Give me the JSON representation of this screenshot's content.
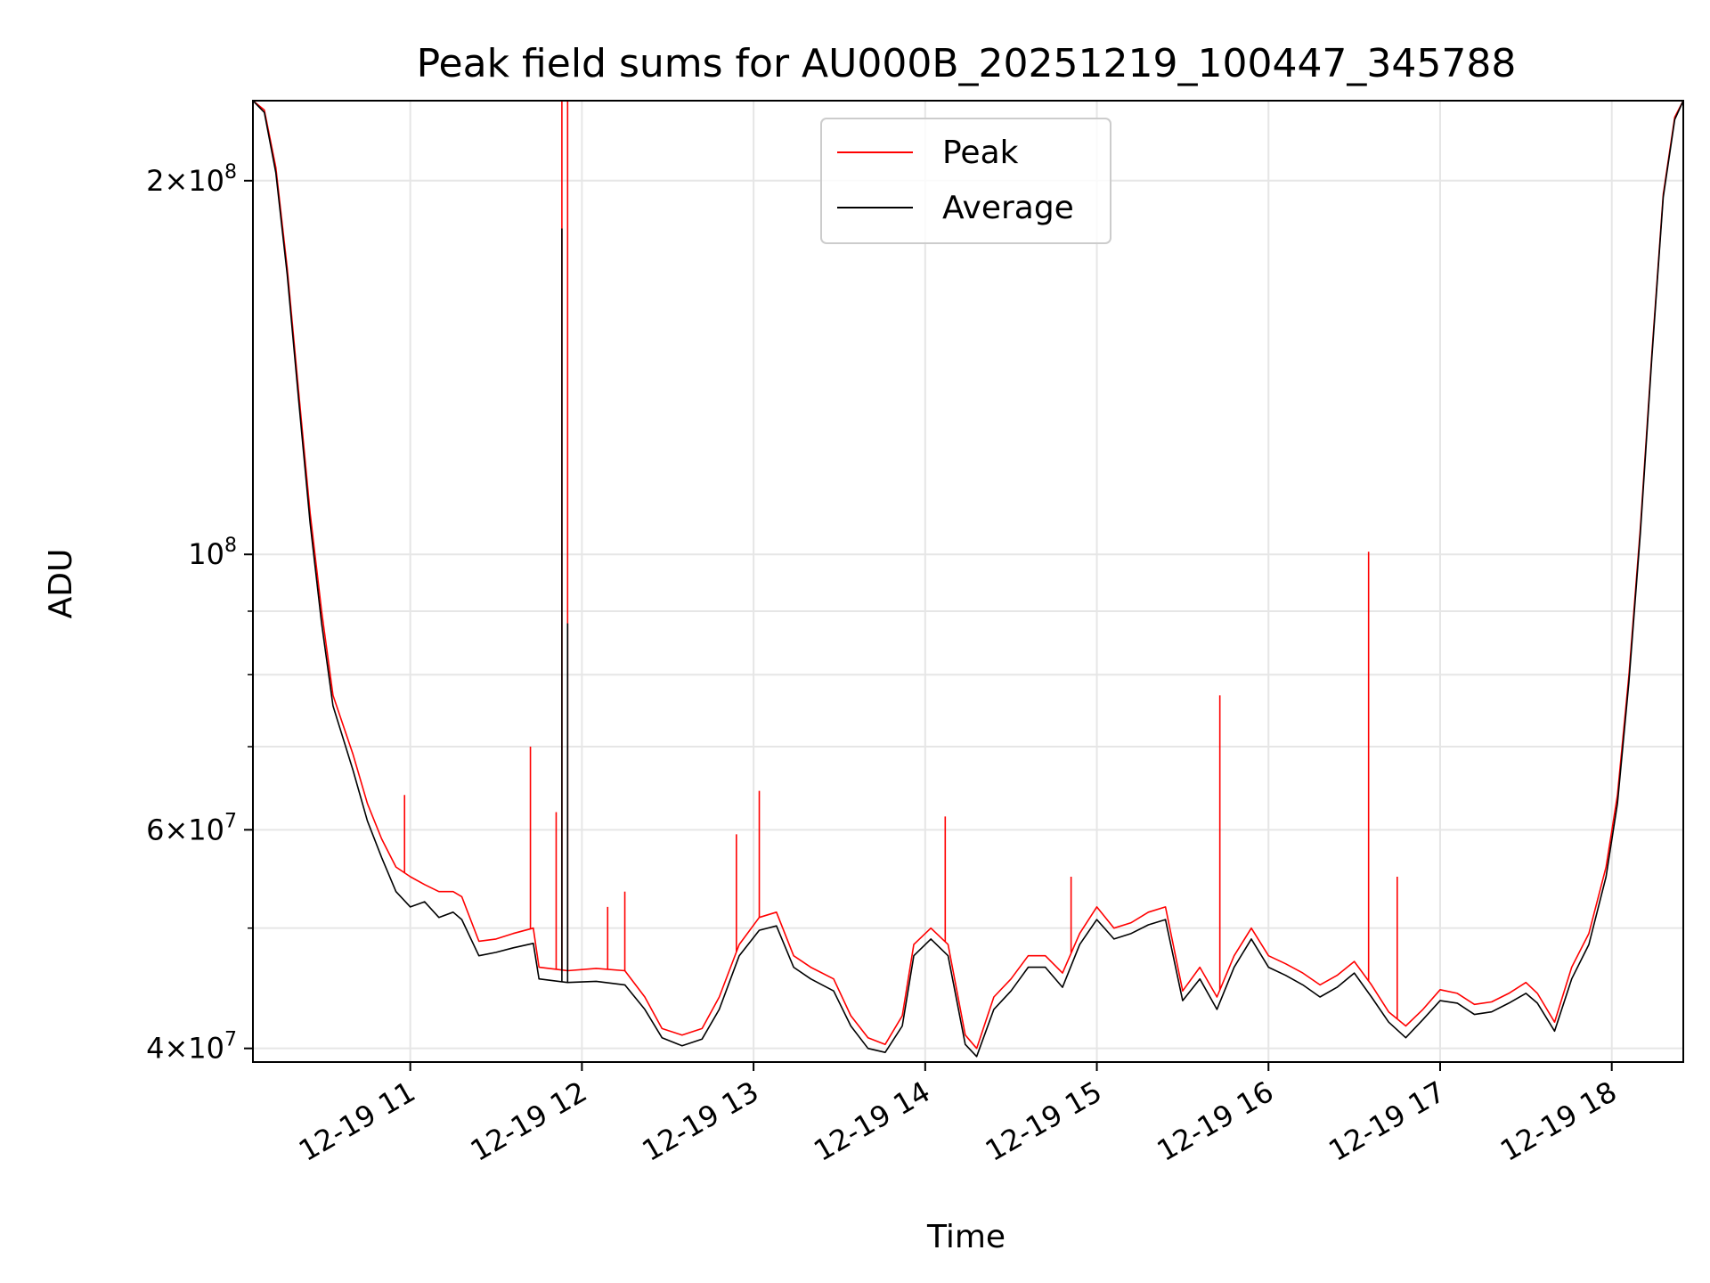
{
  "chart_data": {
    "type": "line",
    "title": "Peak field sums for AU000B_20251219_100447_345788",
    "xlabel": "Time",
    "ylabel": "ADU",
    "y_scale": "log",
    "ylim": [
      39000000,
      232000000
    ],
    "xlim": [
      "2025-12-19T10:05",
      "2025-12-19T18:25"
    ],
    "grid": true,
    "legend_position": "top-center",
    "x_ticks": [
      {
        "t": "2025-12-19T11:00",
        "label": "12-19 11"
      },
      {
        "t": "2025-12-19T12:00",
        "label": "12-19 12"
      },
      {
        "t": "2025-12-19T13:00",
        "label": "12-19 13"
      },
      {
        "t": "2025-12-19T14:00",
        "label": "12-19 14"
      },
      {
        "t": "2025-12-19T15:00",
        "label": "12-19 15"
      },
      {
        "t": "2025-12-19T16:00",
        "label": "12-19 16"
      },
      {
        "t": "2025-12-19T17:00",
        "label": "12-19 17"
      },
      {
        "t": "2025-12-19T18:00",
        "label": "12-19 18"
      }
    ],
    "y_ticks": [
      {
        "value": 40000000,
        "base": "4",
        "exp": "7"
      },
      {
        "value": 60000000,
        "base": "6",
        "exp": "7"
      },
      {
        "value": 100000000,
        "base": "",
        "exp": "8"
      },
      {
        "value": 200000000,
        "base": "2",
        "exp": "8"
      }
    ],
    "y_minor_ticks": [
      50000000,
      70000000,
      80000000,
      90000000
    ],
    "series": [
      {
        "name": "Peak",
        "color": "#ff0000",
        "points": [
          [
            "2025-12-19T10:05",
            232000000
          ],
          [
            "2025-12-19T10:09",
            228000000
          ],
          [
            "2025-12-19T10:13",
            205000000
          ],
          [
            "2025-12-19T10:17",
            170000000
          ],
          [
            "2025-12-19T10:21",
            135000000
          ],
          [
            "2025-12-19T10:25",
            108000000
          ],
          [
            "2025-12-19T10:29",
            90000000
          ],
          [
            "2025-12-19T10:33",
            77000000
          ],
          [
            "2025-12-19T10:40",
            69000000
          ],
          [
            "2025-12-19T10:45",
            63000000
          ],
          [
            "2025-12-19T10:50",
            59000000
          ],
          [
            "2025-12-19T10:55",
            56000000
          ],
          [
            "2025-12-19T11:00",
            55000000
          ],
          [
            "2025-12-19T11:05",
            54200000
          ],
          [
            "2025-12-19T11:10",
            53500000
          ],
          [
            "2025-12-19T11:15",
            53500000
          ],
          [
            "2025-12-19T11:18",
            53000000
          ],
          [
            "2025-12-19T11:24",
            48800000
          ],
          [
            "2025-12-19T11:30",
            49000000
          ],
          [
            "2025-12-19T11:36",
            49500000
          ],
          [
            "2025-12-19T11:43",
            50000000
          ],
          [
            "2025-12-19T11:45",
            46500000
          ],
          [
            "2025-12-19T11:55",
            46200000
          ],
          [
            "2025-12-19T12:05",
            46400000
          ],
          [
            "2025-12-19T12:15",
            46200000
          ],
          [
            "2025-12-19T12:22",
            44000000
          ],
          [
            "2025-12-19T12:28",
            41500000
          ],
          [
            "2025-12-19T12:35",
            41000000
          ],
          [
            "2025-12-19T12:42",
            41500000
          ],
          [
            "2025-12-19T12:48",
            44000000
          ],
          [
            "2025-12-19T12:55",
            48500000
          ],
          [
            "2025-12-19T13:02",
            51000000
          ],
          [
            "2025-12-19T13:08",
            51500000
          ],
          [
            "2025-12-19T13:14",
            47500000
          ],
          [
            "2025-12-19T13:20",
            46500000
          ],
          [
            "2025-12-19T13:28",
            45500000
          ],
          [
            "2025-12-19T13:34",
            42500000
          ],
          [
            "2025-12-19T13:40",
            40800000
          ],
          [
            "2025-12-19T13:46",
            40300000
          ],
          [
            "2025-12-19T13:52",
            42500000
          ],
          [
            "2025-12-19T13:56",
            48500000
          ],
          [
            "2025-12-19T14:02",
            50000000
          ],
          [
            "2025-12-19T14:08",
            48500000
          ],
          [
            "2025-12-19T14:14",
            41000000
          ],
          [
            "2025-12-19T14:18",
            40000000
          ],
          [
            "2025-12-19T14:24",
            44000000
          ],
          [
            "2025-12-19T14:30",
            45500000
          ],
          [
            "2025-12-19T14:36",
            47500000
          ],
          [
            "2025-12-19T14:42",
            47500000
          ],
          [
            "2025-12-19T14:48",
            46000000
          ],
          [
            "2025-12-19T14:54",
            49500000
          ],
          [
            "2025-12-19T15:00",
            52000000
          ],
          [
            "2025-12-19T15:06",
            50000000
          ],
          [
            "2025-12-19T15:12",
            50500000
          ],
          [
            "2025-12-19T15:18",
            51500000
          ],
          [
            "2025-12-19T15:24",
            52000000
          ],
          [
            "2025-12-19T15:30",
            44500000
          ],
          [
            "2025-12-19T15:36",
            46500000
          ],
          [
            "2025-12-19T15:42",
            44000000
          ],
          [
            "2025-12-19T15:48",
            47500000
          ],
          [
            "2025-12-19T15:54",
            50000000
          ],
          [
            "2025-12-19T16:00",
            47500000
          ],
          [
            "2025-12-19T16:06",
            46800000
          ],
          [
            "2025-12-19T16:12",
            46000000
          ],
          [
            "2025-12-19T16:18",
            45000000
          ],
          [
            "2025-12-19T16:24",
            45800000
          ],
          [
            "2025-12-19T16:30",
            47000000
          ],
          [
            "2025-12-19T16:36",
            45000000
          ],
          [
            "2025-12-19T16:42",
            42800000
          ],
          [
            "2025-12-19T16:48",
            41700000
          ],
          [
            "2025-12-19T16:54",
            43000000
          ],
          [
            "2025-12-19T17:00",
            44600000
          ],
          [
            "2025-12-19T17:06",
            44300000
          ],
          [
            "2025-12-19T17:12",
            43400000
          ],
          [
            "2025-12-19T17:18",
            43600000
          ],
          [
            "2025-12-19T17:24",
            44300000
          ],
          [
            "2025-12-19T17:30",
            45200000
          ],
          [
            "2025-12-19T17:34",
            44300000
          ],
          [
            "2025-12-19T17:40",
            42000000
          ],
          [
            "2025-12-19T17:46",
            46500000
          ],
          [
            "2025-12-19T17:52",
            49500000
          ],
          [
            "2025-12-19T17:58",
            56000000
          ],
          [
            "2025-12-19T18:02",
            64000000
          ],
          [
            "2025-12-19T18:06",
            80000000
          ],
          [
            "2025-12-19T18:10",
            105000000
          ],
          [
            "2025-12-19T18:14",
            145000000
          ],
          [
            "2025-12-19T18:18",
            195000000
          ],
          [
            "2025-12-19T18:22",
            225000000
          ],
          [
            "2025-12-19T18:25",
            232000000
          ]
        ],
        "spikes": [
          [
            "2025-12-19T10:58",
            64000000
          ],
          [
            "2025-12-19T11:42",
            70000000
          ],
          [
            "2025-12-19T11:51",
            62000000
          ],
          [
            "2025-12-19T11:53",
            232000000
          ],
          [
            "2025-12-19T11:55",
            232000000
          ],
          [
            "2025-12-19T12:09",
            52000000
          ],
          [
            "2025-12-19T12:15",
            53500000
          ],
          [
            "2025-12-19T12:54",
            59500000
          ],
          [
            "2025-12-19T13:02",
            64500000
          ],
          [
            "2025-12-19T14:07",
            61500000
          ],
          [
            "2025-12-19T14:51",
            55000000
          ],
          [
            "2025-12-19T15:43",
            77000000
          ],
          [
            "2025-12-19T16:35",
            100500000
          ],
          [
            "2025-12-19T16:45",
            55000000
          ]
        ]
      },
      {
        "name": "Average",
        "color": "#000000",
        "points": [
          [
            "2025-12-19T10:05",
            232000000
          ],
          [
            "2025-12-19T10:09",
            227000000
          ],
          [
            "2025-12-19T10:13",
            203000000
          ],
          [
            "2025-12-19T10:17",
            168000000
          ],
          [
            "2025-12-19T10:21",
            133000000
          ],
          [
            "2025-12-19T10:25",
            106000000
          ],
          [
            "2025-12-19T10:29",
            88000000
          ],
          [
            "2025-12-19T10:33",
            75500000
          ],
          [
            "2025-12-19T10:40",
            67000000
          ],
          [
            "2025-12-19T10:45",
            61000000
          ],
          [
            "2025-12-19T10:50",
            57000000
          ],
          [
            "2025-12-19T10:55",
            53500000
          ],
          [
            "2025-12-19T11:00",
            52000000
          ],
          [
            "2025-12-19T11:05",
            52500000
          ],
          [
            "2025-12-19T11:10",
            51000000
          ],
          [
            "2025-12-19T11:15",
            51500000
          ],
          [
            "2025-12-19T11:18",
            50800000
          ],
          [
            "2025-12-19T11:24",
            47500000
          ],
          [
            "2025-12-19T11:30",
            47800000
          ],
          [
            "2025-12-19T11:36",
            48200000
          ],
          [
            "2025-12-19T11:43",
            48600000
          ],
          [
            "2025-12-19T11:45",
            45500000
          ],
          [
            "2025-12-19T11:55",
            45200000
          ],
          [
            "2025-12-19T12:05",
            45300000
          ],
          [
            "2025-12-19T12:15",
            45000000
          ],
          [
            "2025-12-19T12:22",
            43000000
          ],
          [
            "2025-12-19T12:28",
            40800000
          ],
          [
            "2025-12-19T12:35",
            40200000
          ],
          [
            "2025-12-19T12:42",
            40700000
          ],
          [
            "2025-12-19T12:48",
            43000000
          ],
          [
            "2025-12-19T12:55",
            47500000
          ],
          [
            "2025-12-19T13:02",
            49800000
          ],
          [
            "2025-12-19T13:08",
            50200000
          ],
          [
            "2025-12-19T13:14",
            46500000
          ],
          [
            "2025-12-19T13:20",
            45500000
          ],
          [
            "2025-12-19T13:28",
            44500000
          ],
          [
            "2025-12-19T13:34",
            41700000
          ],
          [
            "2025-12-19T13:40",
            40000000
          ],
          [
            "2025-12-19T13:46",
            39700000
          ],
          [
            "2025-12-19T13:52",
            41700000
          ],
          [
            "2025-12-19T13:56",
            47500000
          ],
          [
            "2025-12-19T14:02",
            49000000
          ],
          [
            "2025-12-19T14:08",
            47500000
          ],
          [
            "2025-12-19T14:14",
            40300000
          ],
          [
            "2025-12-19T14:18",
            39400000
          ],
          [
            "2025-12-19T14:24",
            43000000
          ],
          [
            "2025-12-19T14:30",
            44500000
          ],
          [
            "2025-12-19T14:36",
            46500000
          ],
          [
            "2025-12-19T14:42",
            46500000
          ],
          [
            "2025-12-19T14:48",
            44800000
          ],
          [
            "2025-12-19T14:54",
            48500000
          ],
          [
            "2025-12-19T15:00",
            50800000
          ],
          [
            "2025-12-19T15:06",
            49000000
          ],
          [
            "2025-12-19T15:12",
            49500000
          ],
          [
            "2025-12-19T15:18",
            50300000
          ],
          [
            "2025-12-19T15:24",
            50800000
          ],
          [
            "2025-12-19T15:30",
            43700000
          ],
          [
            "2025-12-19T15:36",
            45500000
          ],
          [
            "2025-12-19T15:42",
            43000000
          ],
          [
            "2025-12-19T15:48",
            46500000
          ],
          [
            "2025-12-19T15:54",
            49000000
          ],
          [
            "2025-12-19T16:00",
            46500000
          ],
          [
            "2025-12-19T16:06",
            45800000
          ],
          [
            "2025-12-19T16:12",
            45000000
          ],
          [
            "2025-12-19T16:18",
            44000000
          ],
          [
            "2025-12-19T16:24",
            44800000
          ],
          [
            "2025-12-19T16:30",
            46000000
          ],
          [
            "2025-12-19T16:36",
            44000000
          ],
          [
            "2025-12-19T16:42",
            42000000
          ],
          [
            "2025-12-19T16:48",
            40800000
          ],
          [
            "2025-12-19T16:54",
            42200000
          ],
          [
            "2025-12-19T17:00",
            43700000
          ],
          [
            "2025-12-19T17:06",
            43500000
          ],
          [
            "2025-12-19T17:12",
            42600000
          ],
          [
            "2025-12-19T17:18",
            42800000
          ],
          [
            "2025-12-19T17:24",
            43500000
          ],
          [
            "2025-12-19T17:30",
            44300000
          ],
          [
            "2025-12-19T17:34",
            43500000
          ],
          [
            "2025-12-19T17:40",
            41300000
          ],
          [
            "2025-12-19T17:46",
            45500000
          ],
          [
            "2025-12-19T17:52",
            48500000
          ],
          [
            "2025-12-19T17:58",
            55000000
          ],
          [
            "2025-12-19T18:02",
            63000000
          ],
          [
            "2025-12-19T18:06",
            79000000
          ],
          [
            "2025-12-19T18:10",
            104000000
          ],
          [
            "2025-12-19T18:14",
            144000000
          ],
          [
            "2025-12-19T18:18",
            194000000
          ],
          [
            "2025-12-19T18:22",
            224000000
          ],
          [
            "2025-12-19T18:25",
            232000000
          ]
        ],
        "spikes": [
          [
            "2025-12-19T11:53",
            183000000
          ],
          [
            "2025-12-19T11:55",
            88000000
          ]
        ]
      }
    ]
  }
}
